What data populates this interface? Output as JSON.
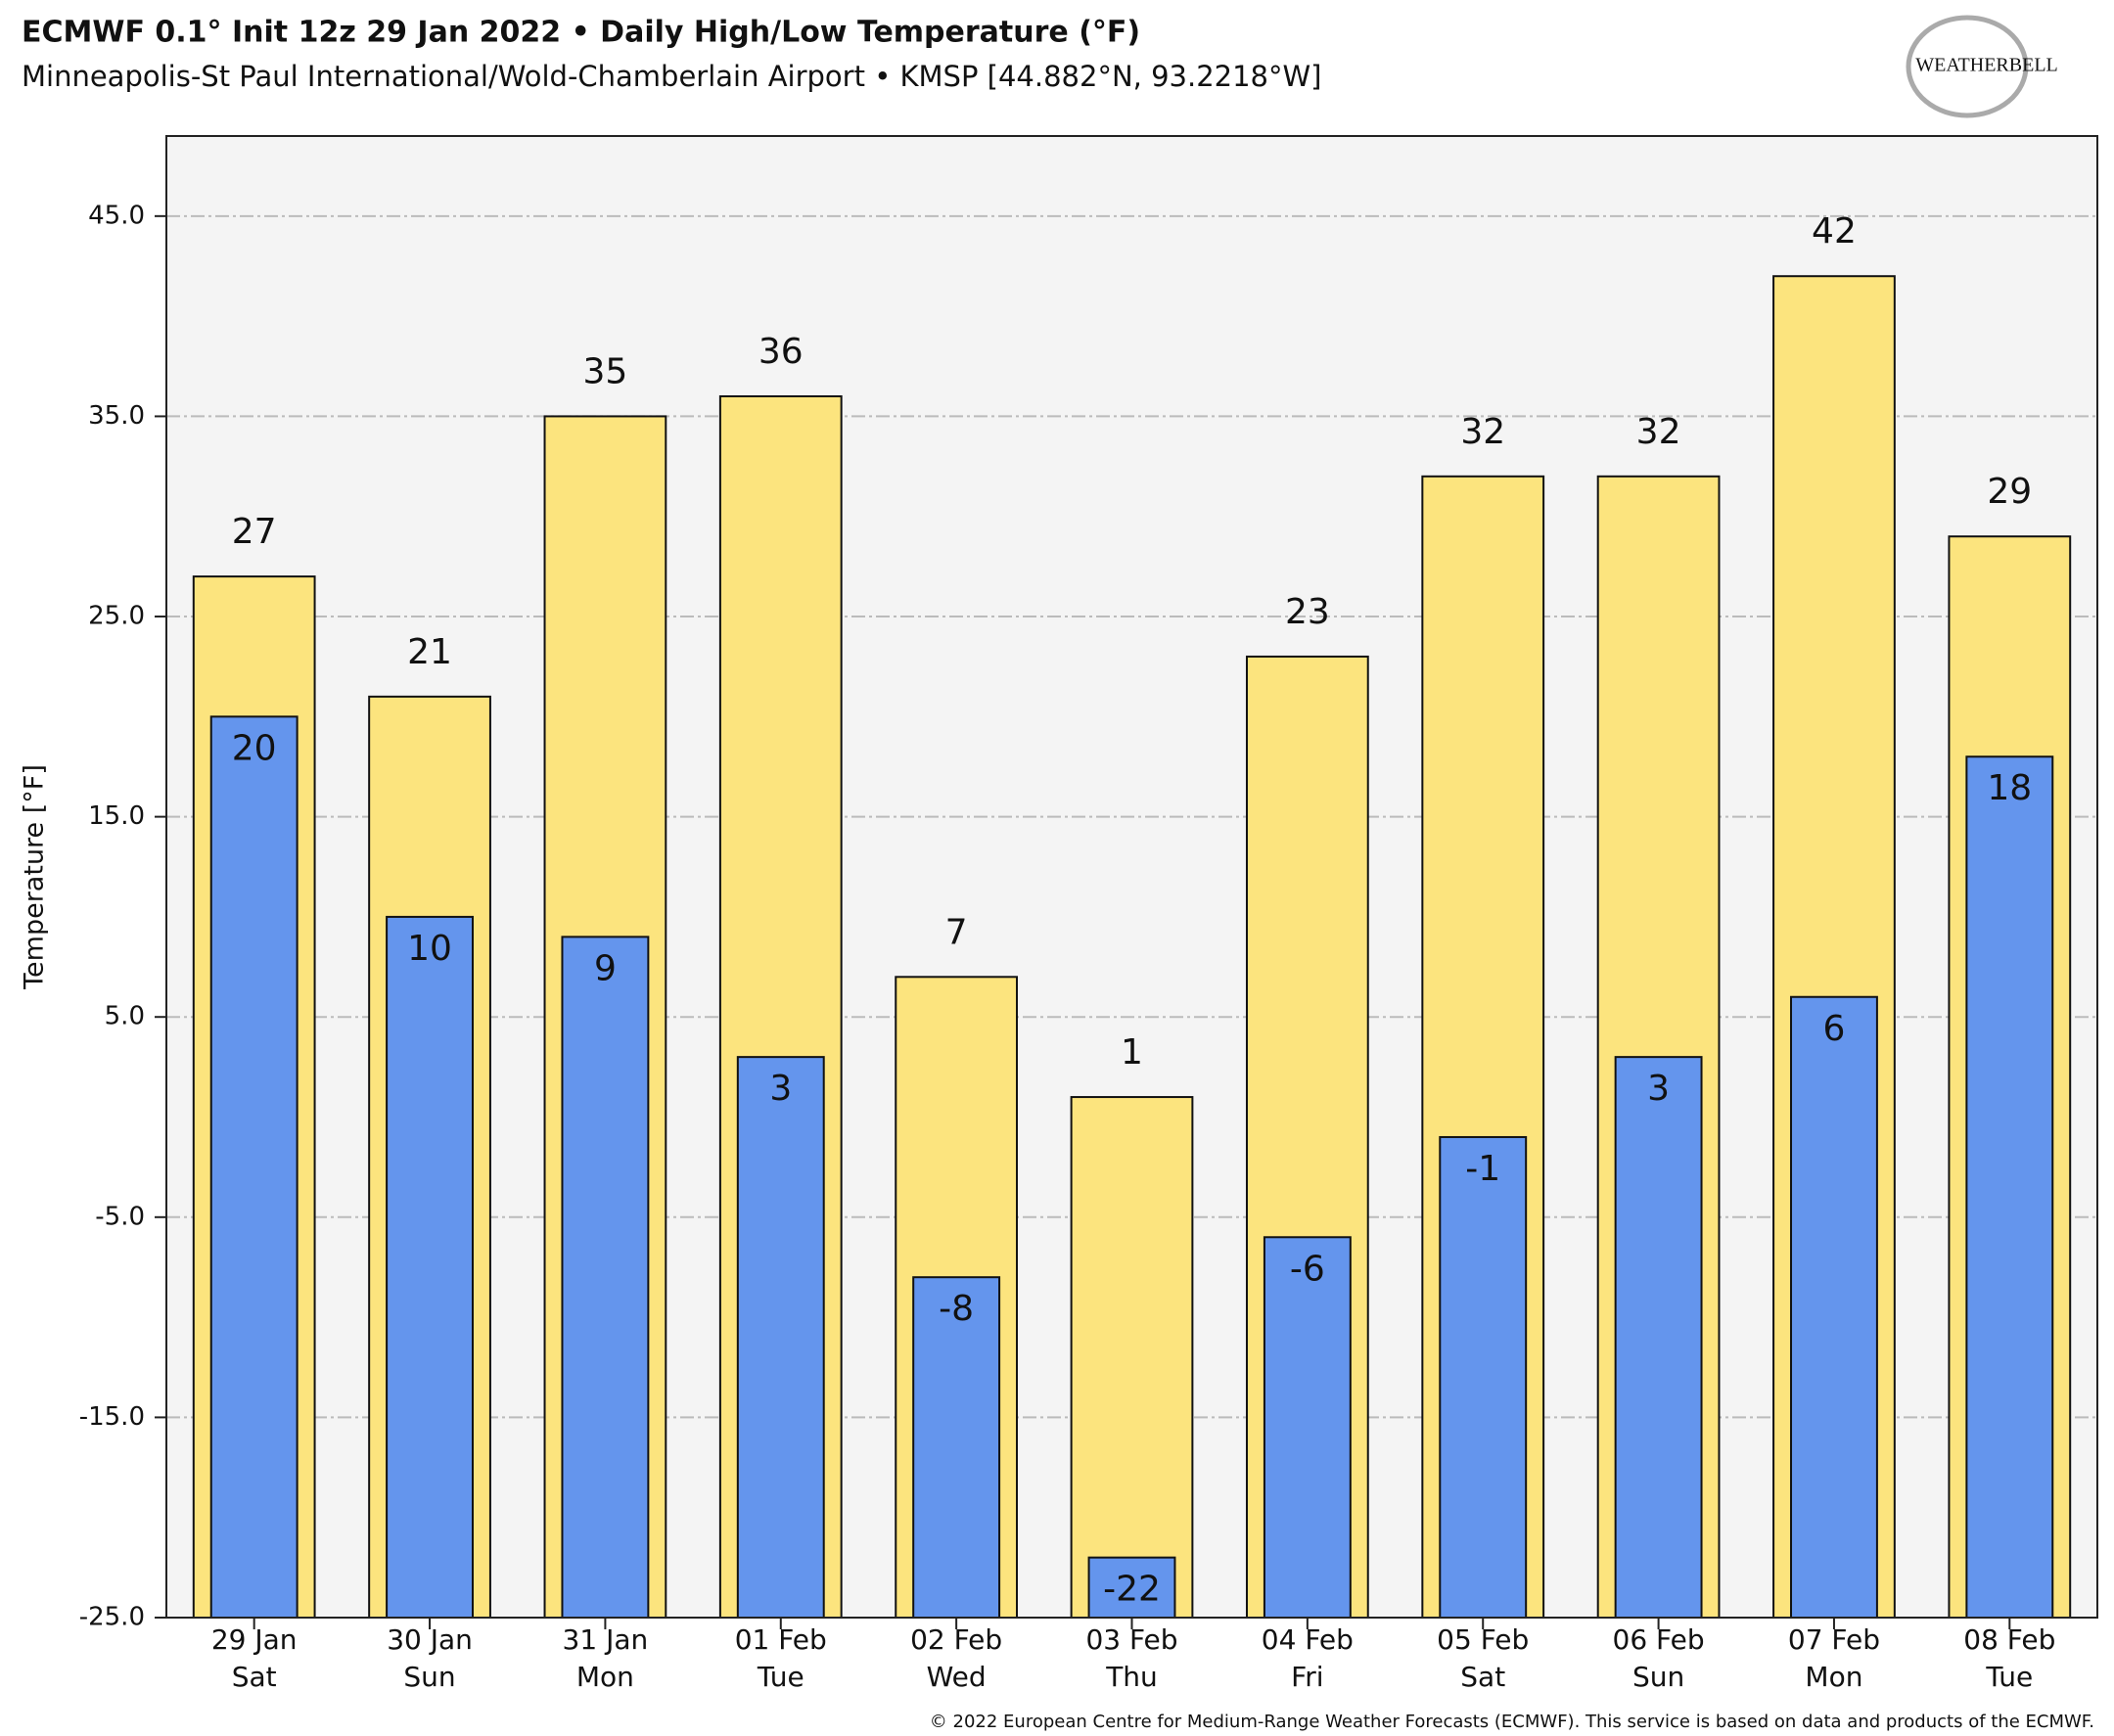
{
  "chart_data": {
    "type": "bar",
    "title": "ECMWF 0.1° Init 12z 29 Jan 2022 • Daily High/Low Temperature (°F)",
    "subtitle": "Minneapolis-St Paul International/Wold-Chamberlain Airport • KMSP [44.882°N, 93.2218°W]",
    "logo": "WEATHERBELL",
    "y_label": "Temperature [°F]",
    "footer": "© 2022 European Centre for Medium-Range Weather Forecasts (ECMWF). This service is based on data and products of the ECMWF.",
    "categories": [
      "29 Jan",
      "30 Jan",
      "31 Jan",
      "01 Feb",
      "02 Feb",
      "03 Feb",
      "04 Feb",
      "05 Feb",
      "06 Feb",
      "07 Feb",
      "08 Feb"
    ],
    "weekdays": [
      "Sat",
      "Sun",
      "Mon",
      "Tue",
      "Wed",
      "Thu",
      "Fri",
      "Sat",
      "Sun",
      "Mon",
      "Tue"
    ],
    "series": [
      {
        "name": "High",
        "color": "#fce47e",
        "values": [
          27,
          21,
          35,
          36,
          7,
          1,
          23,
          32,
          32,
          42,
          29
        ]
      },
      {
        "name": "Low",
        "color": "#6495ed",
        "values": [
          20,
          10,
          9,
          3,
          -8,
          -22,
          -6,
          -1,
          3,
          6,
          18
        ]
      }
    ],
    "ylim": [
      -25,
      49
    ],
    "yticks": [
      {
        "value": -25,
        "label": "-25.0"
      },
      {
        "value": -15,
        "label": "-15.0"
      },
      {
        "value": -5,
        "label": "-5.0"
      },
      {
        "value": 5,
        "label": "5.0"
      },
      {
        "value": 15,
        "label": "15.0"
      },
      {
        "value": 25,
        "label": "25.0"
      },
      {
        "value": 35,
        "label": "35.0"
      },
      {
        "value": 45,
        "label": "45.0"
      }
    ],
    "grid": true
  }
}
